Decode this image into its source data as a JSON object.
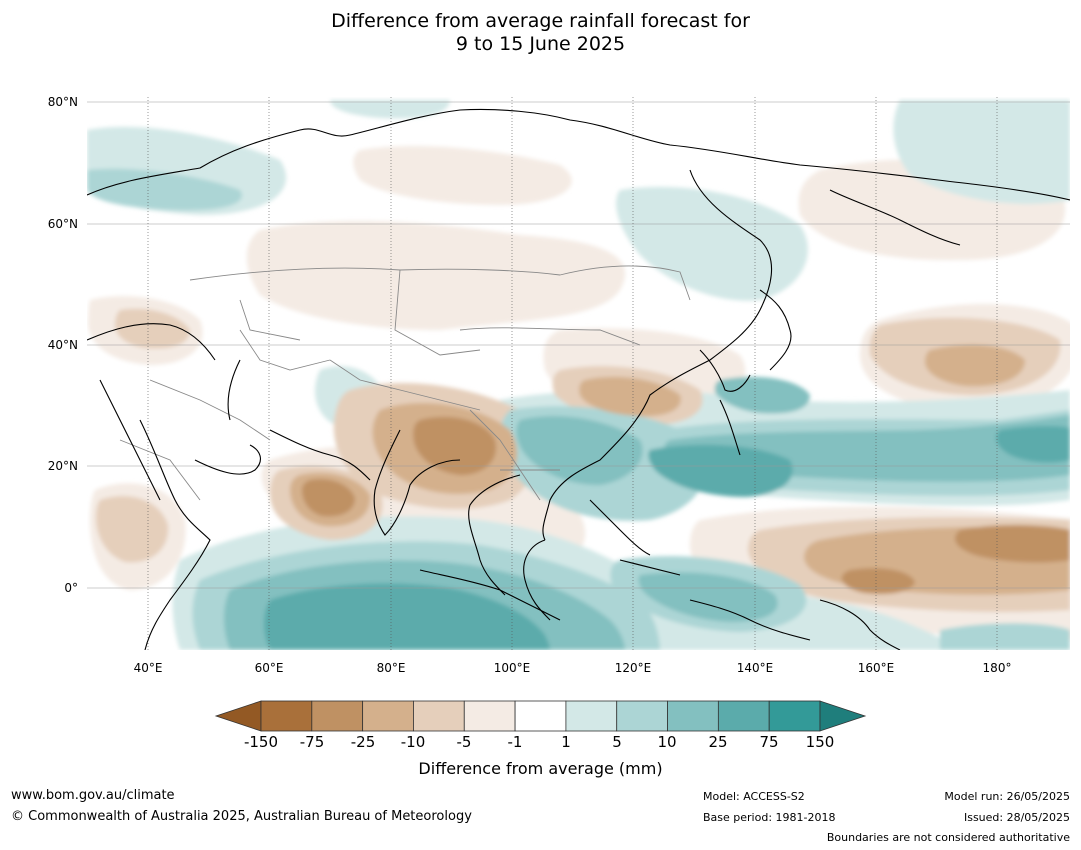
{
  "title_line1": "Difference from average rainfall forecast for",
  "title_line2": "9 to 15 June 2025",
  "map": {
    "lat_labels": [
      "80°N",
      "60°N",
      "40°N",
      "20°N",
      "0°"
    ],
    "lon_labels": [
      "40°E",
      "60°E",
      "80°E",
      "100°E",
      "120°E",
      "140°E",
      "160°E",
      "180°"
    ],
    "ocean_color": "#ffffff",
    "coastline_color": "#000000",
    "border_color": "#888888"
  },
  "colorbar": {
    "label": "Difference from average (mm)",
    "ticks": [
      "-150",
      "-75",
      "-25",
      "-10",
      "-5",
      "-1",
      "1",
      "5",
      "10",
      "25",
      "75",
      "150"
    ],
    "colors": [
      "#a9703a",
      "#bf9163",
      "#d4b08c",
      "#e5cfbb",
      "#f4ebe4",
      "#ffffff",
      "#d3e8e7",
      "#acd5d5",
      "#83c0c0",
      "#5babab",
      "#339a98"
    ],
    "under_color": "#935924",
    "over_color": "#1f7e7c"
  },
  "footer": {
    "website": "www.bom.gov.au/climate",
    "copyright": "© Commonwealth of Australia 2025, Australian Bureau of Meteorology",
    "model": "Model: ACCESS-S2",
    "base_period": "Base period: 1981-2018",
    "model_run": "Model run: 26/05/2025",
    "issued": "Issued: 28/05/2025",
    "boundaries": "Boundaries are not considered authoritative"
  }
}
